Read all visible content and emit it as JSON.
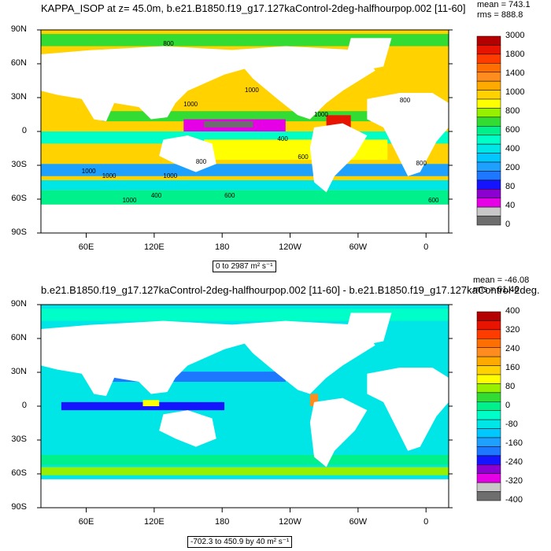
{
  "chart_data": [
    {
      "type": "heatmap",
      "title": "KAPPA_ISOP at z=  45.0m, b.e21.B1850.f19_g17.127kaControl-2deg-halfhourpop.002 [11-60]",
      "stats": [
        "mean = 743.1",
        "rms = 888.8"
      ],
      "y_tick_labels": [
        "90N",
        "60N",
        "30N",
        "0",
        "30S",
        "60S",
        "90S"
      ],
      "x_tick_labels": [
        "60E",
        "120E",
        "180",
        "120W",
        "60W",
        "0"
      ],
      "colorbar_levels": [
        "0",
        "40",
        "80",
        "200",
        "400",
        "600",
        "800",
        "1000",
        "1400",
        "1800",
        "3000"
      ],
      "colorbar_colors": [
        "#6e6e6e",
        "#c8c8c8",
        "#e600e6",
        "#8c00d2",
        "#1414ff",
        "#1e78ff",
        "#1ea0ff",
        "#00c8ff",
        "#00e6e6",
        "#00ffc8",
        "#00f08c",
        "#32dc32",
        "#96f000",
        "#ffff00",
        "#ffd200",
        "#ffaa00",
        "#ff8c1e",
        "#ff6e00",
        "#ff3c00",
        "#e61400",
        "#b40000"
      ],
      "contour_labels": [
        "800",
        "1000",
        "1000",
        "1000",
        "800",
        "1000",
        "400",
        "800",
        "1000",
        "1000",
        "600",
        "400",
        "1000",
        "600",
        "800",
        "600"
      ],
      "range_label": "0 to 2987 m² s⁻¹"
    },
    {
      "type": "heatmap",
      "title": "b.e21.B1850.f19_g17.127kaControl-2deg-halfhourpop.002 [11-60] - b.e21.B1850.f19_g17.127kaControl-2deg.",
      "stats": [
        "mean = -46.08",
        "rms = 61.46"
      ],
      "y_tick_labels": [
        "90N",
        "60N",
        "30N",
        "0",
        "30S",
        "60S",
        "90S"
      ],
      "x_tick_labels": [
        "60E",
        "120E",
        "180",
        "120W",
        "60W",
        "0"
      ],
      "colorbar_levels": [
        "400",
        "320",
        "240",
        "160",
        "80",
        "0",
        "-80",
        "-160",
        "-240",
        "-320",
        "-400"
      ],
      "colorbar_colors": [
        "#b40000",
        "#e61400",
        "#ff3c00",
        "#ff6e00",
        "#ff8c1e",
        "#ffaa00",
        "#ffd200",
        "#ffff00",
        "#96f000",
        "#32dc32",
        "#00f08c",
        "#00ffc8",
        "#00e6e6",
        "#00c8ff",
        "#1ea0ff",
        "#1e78ff",
        "#1414ff",
        "#8c00d2",
        "#e600e6",
        "#c8c8c8",
        "#6e6e6e"
      ],
      "range_label": "-702.3 to 450.9 by 40 m² s⁻¹"
    }
  ]
}
